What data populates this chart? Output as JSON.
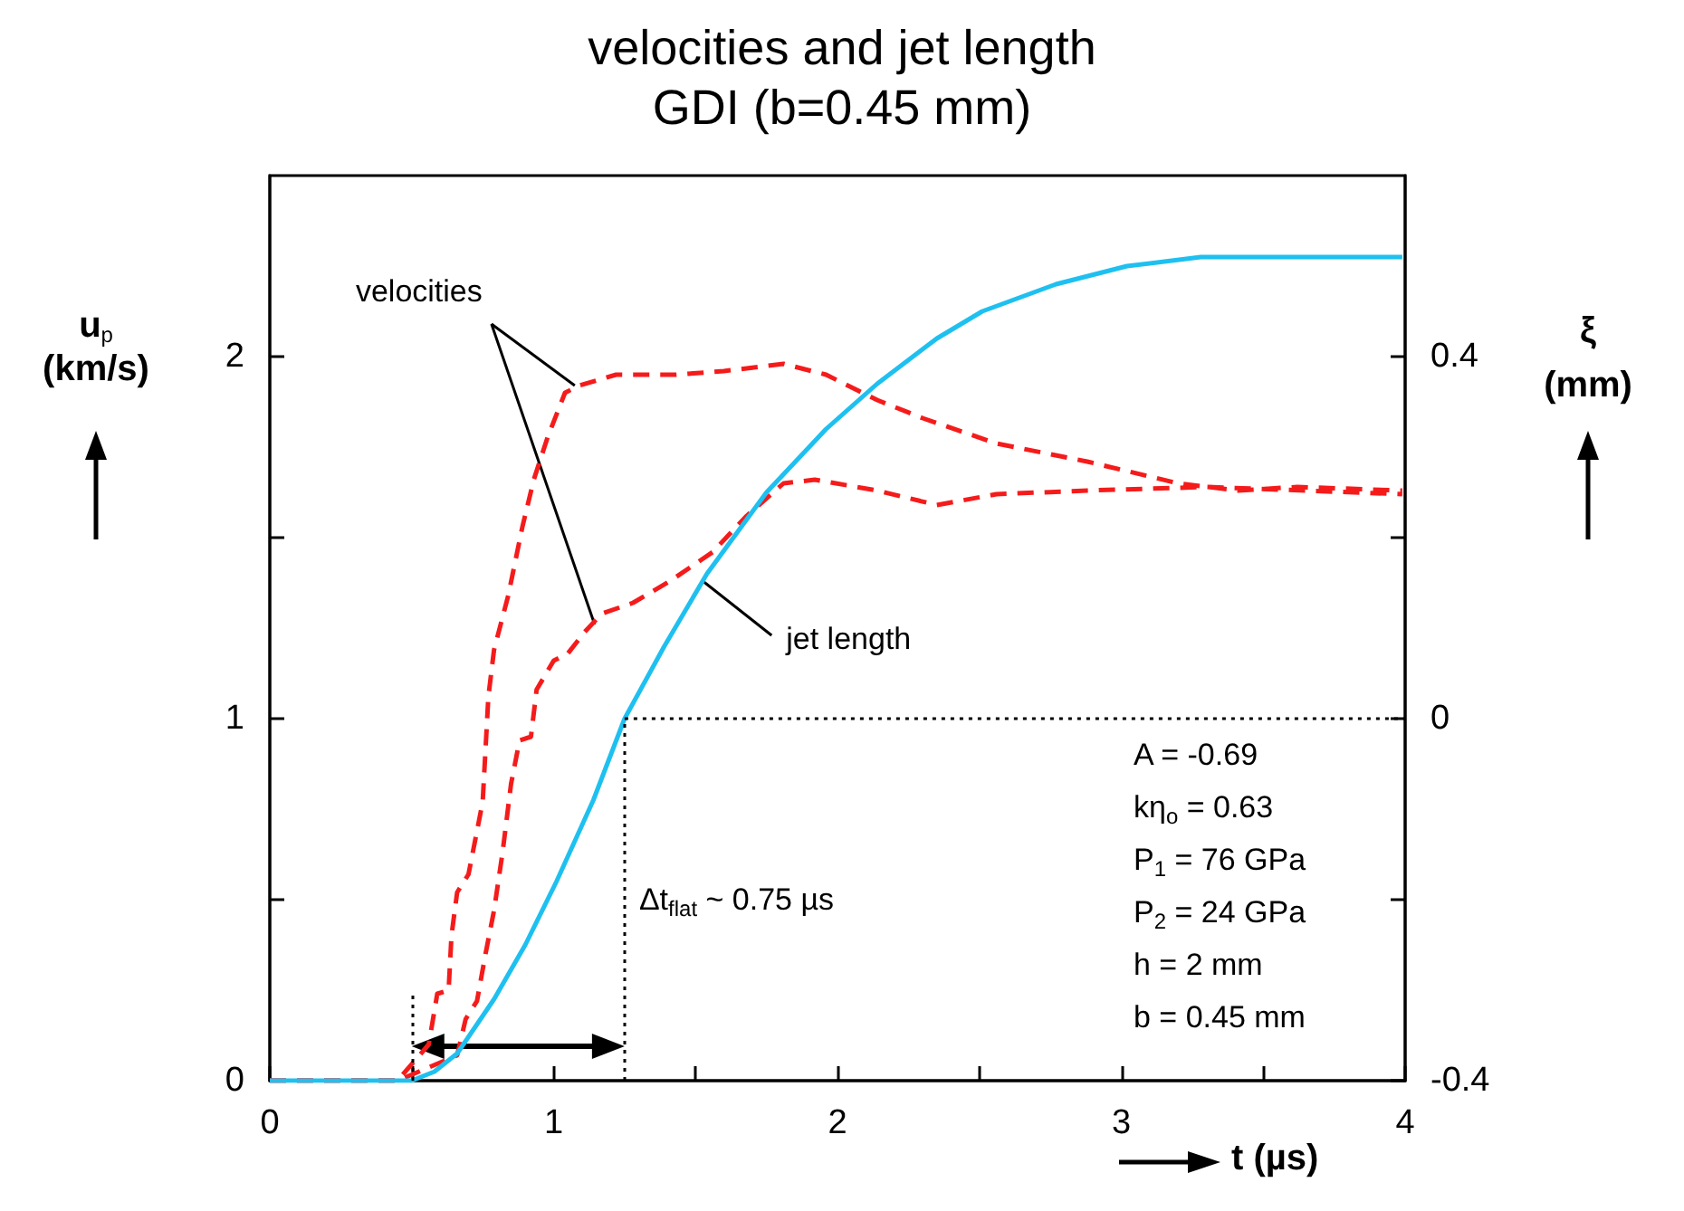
{
  "chart_data": {
    "type": "line",
    "title": "velocities and jet length",
    "subtitle": "GDI (b=0.45 mm)",
    "xlabel": "t (µs)",
    "ylabel": "u$_{p}$ (km/s)",
    "y2label": "ξ (mm)",
    "xlim": [
      0,
      4
    ],
    "xticks": [
      0,
      {
        "value": 0.5,
        "label": null
      },
      1,
      {
        "value": 1.5,
        "label": null
      },
      2,
      {
        "value": 2.5,
        "label": null
      },
      3,
      {
        "value": 3.5,
        "label": null
      },
      4
    ],
    "ylim": [
      0,
      2.5
    ],
    "yticks": [
      0,
      {
        "value": 0.5,
        "label": null
      },
      1,
      {
        "value": 1.5,
        "label": null
      },
      2
    ],
    "y2lim": [
      -0.4,
      0.6
    ],
    "y2ticks": [
      -0.4,
      {
        "value": -0.2,
        "label": null
      },
      0,
      {
        "value": 0.2,
        "label": null
      },
      0.4
    ],
    "grid": false,
    "marker": "none",
    "series": [
      {
        "color": "#f51b1b",
        "line_style": "dashed",
        "x": [
          0,
          0.45,
          0.56,
          0.59,
          0.63,
          0.64,
          0.66,
          0.7,
          0.75,
          0.77,
          0.79,
          0.84,
          0.89,
          0.93,
          0.98,
          1.04,
          1.09,
          1.22,
          1.43,
          1.6,
          1.81,
          1.96,
          2.14,
          2.3,
          2.56,
          2.88,
          3.2,
          3.41,
          3.62,
          3.99
        ],
        "values": [
          0,
          0,
          0.1,
          0.24,
          0.25,
          0.4,
          0.52,
          0.57,
          0.77,
          1.06,
          1.19,
          1.34,
          1.53,
          1.66,
          1.78,
          1.9,
          1.92,
          1.95,
          1.95,
          1.96,
          1.98,
          1.95,
          1.88,
          1.83,
          1.76,
          1.71,
          1.65,
          1.63,
          1.64,
          1.63
        ]
      },
      {
        "color": "#f51b1b",
        "line_style": "dashed",
        "x": [
          0,
          0.45,
          0.66,
          0.69,
          0.73,
          0.76,
          0.79,
          0.82,
          0.85,
          0.88,
          0.92,
          0.94,
          1.0,
          1.05,
          1.11,
          1.17,
          1.28,
          1.41,
          1.56,
          1.68,
          1.81,
          1.92,
          2.14,
          2.35,
          2.56,
          2.88,
          3.3,
          3.99
        ],
        "values": [
          0,
          0,
          0.07,
          0.17,
          0.22,
          0.35,
          0.47,
          0.63,
          0.82,
          0.94,
          0.95,
          1.08,
          1.16,
          1.18,
          1.24,
          1.29,
          1.32,
          1.38,
          1.46,
          1.56,
          1.65,
          1.66,
          1.63,
          1.59,
          1.62,
          1.63,
          1.64,
          1.62
        ]
      },
      {
        "color": "#1ec0f0",
        "line_style": "solid",
        "axis": "y2",
        "x": [
          0,
          0.5,
          0.58,
          0.66,
          0.79,
          0.9,
          1.01,
          1.14,
          1.25,
          1.39,
          1.54,
          1.75,
          1.96,
          2.14,
          2.35,
          2.51,
          2.77,
          3.02,
          3.28,
          3.62,
          3.99
        ],
        "values": [
          -0.4,
          -0.4,
          -0.39,
          -0.37,
          -0.31,
          -0.25,
          -0.18,
          -0.09,
          0,
          0.08,
          0.16,
          0.25,
          0.32,
          0.37,
          0.42,
          0.45,
          0.48,
          0.5,
          0.51,
          0.51,
          0.51
        ]
      }
    ],
    "ref_lines": [
      {
        "axis": "y",
        "value": 1,
        "line_style": "dotted",
        "color": "#000000"
      },
      {
        "axis": "x",
        "value": 1.25,
        "line_style": "dotted",
        "color": "#000000"
      },
      {
        "axis": "x",
        "value": 0.5,
        "line_style": "dotted",
        "color": "#000000"
      }
    ],
    "annotations": [
      {
        "text": "velocities",
        "x": 1.1,
        "y": 1.92
      },
      {
        "text": "jet length",
        "x": 1.5,
        "y": 1.38
      },
      "Δt$_{flat}$ ~ 0.75 µs",
      "A = -0.69",
      "kη$_{o}$ = 0.63",
      "P$_{1}$ = 76 GPa",
      "P$_{2}$ = 24 GPa",
      "h = 2 mm",
      "b = 0.45 mm"
    ]
  }
}
